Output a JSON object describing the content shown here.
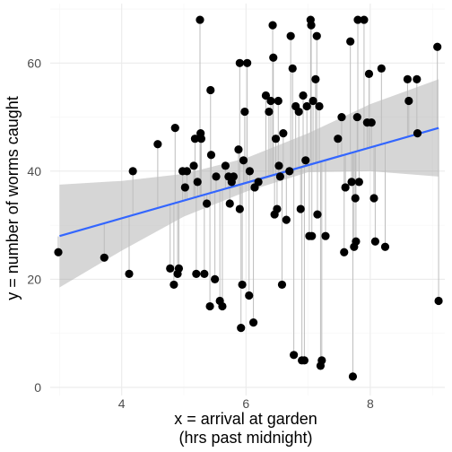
{
  "chart_data": {
    "type": "scatter",
    "title": "",
    "xlabel_lines": [
      "x = arrival at garden",
      "(hrs past midnight)"
    ],
    "ylabel": "y = number of worms caught",
    "xlim": [
      2.85,
      9.2
    ],
    "ylim": [
      -1.5,
      71
    ],
    "x_ticks": [
      4,
      6,
      8
    ],
    "x_minor": [
      3,
      5,
      7,
      9
    ],
    "y_ticks": [
      0,
      20,
      40,
      60
    ],
    "y_minor": [
      10,
      30,
      50,
      70
    ],
    "grid": true,
    "colors": {
      "points": "#000000",
      "fit_line": "#3366ff",
      "confidence_band": "#999999",
      "residual_lines": "#bdbdbd",
      "grid_major": "#ebebeb",
      "grid_minor": "#f5f5f5"
    },
    "fit_line": {
      "x": [
        3.0,
        9.1
      ],
      "y": [
        28.0,
        48.0
      ]
    },
    "confidence_band": {
      "x": [
        3.0,
        4.0,
        5.0,
        6.0,
        7.0,
        8.0,
        9.1
      ],
      "lower": [
        18.5,
        25.3,
        31.6,
        36.2,
        39.8,
        40.0,
        39.0
      ],
      "upper": [
        37.5,
        38.2,
        39.5,
        42.4,
        47.0,
        52.4,
        57.0
      ]
    },
    "points": [
      {
        "x": 2.98,
        "y": 25
      },
      {
        "x": 3.72,
        "y": 24
      },
      {
        "x": 4.12,
        "y": 21
      },
      {
        "x": 4.18,
        "y": 40
      },
      {
        "x": 4.58,
        "y": 45
      },
      {
        "x": 4.78,
        "y": 22
      },
      {
        "x": 4.84,
        "y": 19
      },
      {
        "x": 4.86,
        "y": 48
      },
      {
        "x": 4.9,
        "y": 21
      },
      {
        "x": 4.92,
        "y": 22
      },
      {
        "x": 4.98,
        "y": 40
      },
      {
        "x": 5.02,
        "y": 37
      },
      {
        "x": 5.05,
        "y": 40
      },
      {
        "x": 5.16,
        "y": 41
      },
      {
        "x": 5.18,
        "y": 46
      },
      {
        "x": 5.2,
        "y": 21
      },
      {
        "x": 5.22,
        "y": 38
      },
      {
        "x": 5.26,
        "y": 68
      },
      {
        "x": 5.27,
        "y": 47
      },
      {
        "x": 5.28,
        "y": 46
      },
      {
        "x": 5.33,
        "y": 21
      },
      {
        "x": 5.37,
        "y": 34
      },
      {
        "x": 5.42,
        "y": 15
      },
      {
        "x": 5.43,
        "y": 55
      },
      {
        "x": 5.44,
        "y": 43
      },
      {
        "x": 5.5,
        "y": 20
      },
      {
        "x": 5.52,
        "y": 39
      },
      {
        "x": 5.58,
        "y": 16
      },
      {
        "x": 5.62,
        "y": 15
      },
      {
        "x": 5.67,
        "y": 41
      },
      {
        "x": 5.72,
        "y": 39
      },
      {
        "x": 5.74,
        "y": 34
      },
      {
        "x": 5.77,
        "y": 38
      },
      {
        "x": 5.8,
        "y": 39
      },
      {
        "x": 5.88,
        "y": 44
      },
      {
        "x": 5.9,
        "y": 60
      },
      {
        "x": 5.92,
        "y": 11
      },
      {
        "x": 5.94,
        "y": 19
      },
      {
        "x": 5.96,
        "y": 42
      },
      {
        "x": 5.98,
        "y": 51
      },
      {
        "x": 5.9,
        "y": 33
      },
      {
        "x": 6.02,
        "y": 60
      },
      {
        "x": 6.05,
        "y": 17
      },
      {
        "x": 6.06,
        "y": 40
      },
      {
        "x": 6.12,
        "y": 12
      },
      {
        "x": 6.14,
        "y": 37
      },
      {
        "x": 6.2,
        "y": 38
      },
      {
        "x": 6.32,
        "y": 54
      },
      {
        "x": 6.37,
        "y": 51
      },
      {
        "x": 6.4,
        "y": 53
      },
      {
        "x": 6.43,
        "y": 67
      },
      {
        "x": 6.44,
        "y": 61
      },
      {
        "x": 6.46,
        "y": 32
      },
      {
        "x": 6.48,
        "y": 46
      },
      {
        "x": 6.5,
        "y": 33
      },
      {
        "x": 6.52,
        "y": 53
      },
      {
        "x": 6.53,
        "y": 41
      },
      {
        "x": 6.55,
        "y": 39
      },
      {
        "x": 6.58,
        "y": 19
      },
      {
        "x": 6.6,
        "y": 47
      },
      {
        "x": 6.65,
        "y": 31
      },
      {
        "x": 6.7,
        "y": 40
      },
      {
        "x": 6.72,
        "y": 65
      },
      {
        "x": 6.75,
        "y": 59
      },
      {
        "x": 6.77,
        "y": 6
      },
      {
        "x": 6.8,
        "y": 52
      },
      {
        "x": 6.85,
        "y": 51
      },
      {
        "x": 6.88,
        "y": 33
      },
      {
        "x": 6.9,
        "y": 5
      },
      {
        "x": 6.92,
        "y": 54
      },
      {
        "x": 6.94,
        "y": 5
      },
      {
        "x": 6.96,
        "y": 42
      },
      {
        "x": 6.98,
        "y": 52
      },
      {
        "x": 7.02,
        "y": 28
      },
      {
        "x": 7.04,
        "y": 68
      },
      {
        "x": 7.05,
        "y": 67
      },
      {
        "x": 7.06,
        "y": 28
      },
      {
        "x": 7.08,
        "y": 53
      },
      {
        "x": 7.12,
        "y": 57
      },
      {
        "x": 7.14,
        "y": 65
      },
      {
        "x": 7.15,
        "y": 32
      },
      {
        "x": 7.18,
        "y": 52
      },
      {
        "x": 7.2,
        "y": 4
      },
      {
        "x": 7.22,
        "y": 5
      },
      {
        "x": 7.28,
        "y": 28
      },
      {
        "x": 7.48,
        "y": 46
      },
      {
        "x": 7.54,
        "y": 50
      },
      {
        "x": 7.58,
        "y": 25
      },
      {
        "x": 7.6,
        "y": 37
      },
      {
        "x": 7.68,
        "y": 64
      },
      {
        "x": 7.7,
        "y": 38
      },
      {
        "x": 7.72,
        "y": 2
      },
      {
        "x": 7.74,
        "y": 26
      },
      {
        "x": 7.76,
        "y": 35
      },
      {
        "x": 7.77,
        "y": 27
      },
      {
        "x": 7.79,
        "y": 50
      },
      {
        "x": 7.8,
        "y": 68
      },
      {
        "x": 7.82,
        "y": 38
      },
      {
        "x": 7.9,
        "y": 68
      },
      {
        "x": 7.95,
        "y": 49
      },
      {
        "x": 7.98,
        "y": 58
      },
      {
        "x": 8.02,
        "y": 49
      },
      {
        "x": 8.06,
        "y": 35
      },
      {
        "x": 8.08,
        "y": 27
      },
      {
        "x": 8.18,
        "y": 59
      },
      {
        "x": 8.24,
        "y": 26
      },
      {
        "x": 8.6,
        "y": 57
      },
      {
        "x": 8.62,
        "y": 53
      },
      {
        "x": 8.75,
        "y": 57
      },
      {
        "x": 8.76,
        "y": 47
      },
      {
        "x": 9.08,
        "y": 63
      },
      {
        "x": 9.1,
        "y": 16
      }
    ]
  }
}
